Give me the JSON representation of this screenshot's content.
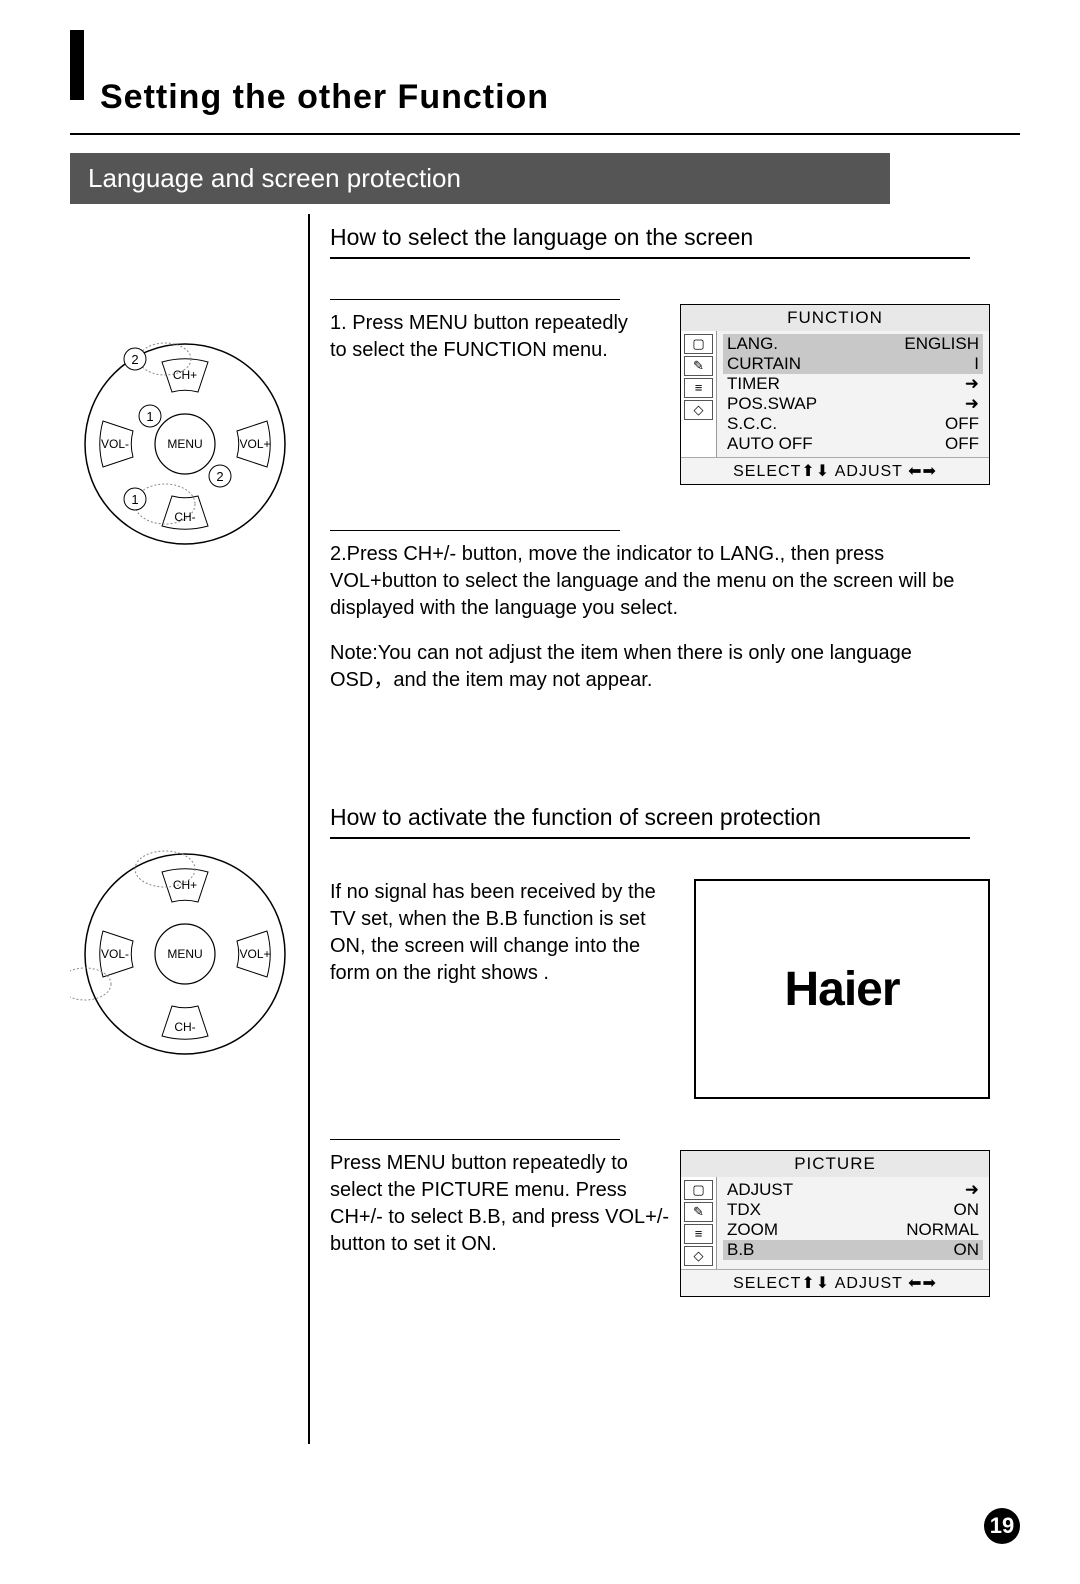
{
  "page_number": "19",
  "main_title": "Setting the other Function",
  "section_bar": "Language and screen protection",
  "heading1": "How to select the language on the screen",
  "step1": "1. Press MENU button repeatedly to select the FUNCTION  menu.",
  "step2": "2.Press CH+/- button, move the indicator to LANG., then press VOL+button to select the language and the menu on the screen will be displayed with the language you select.",
  "note1": "Note:You can not adjust the item when there is only one language OSD，and the item may not appear.",
  "heading2": "How to activate the function of screen protection",
  "para2": "If no signal has been received by the TV set, when the B.B function is set ON, the screen will change into  the form on the right shows .",
  "haier_logo": "Haier",
  "para3": "Press MENU button repeatedly to select the PICTURE menu. Press CH+/- to select B.B, and press VOL+/- button to set it ON.",
  "osd1": {
    "title": "FUNCTION",
    "rows": [
      {
        "label": "LANG.",
        "value": "ENGLISH",
        "hl": true
      },
      {
        "label": "CURTAIN",
        "value": "I",
        "hl": true
      },
      {
        "label": "TIMER",
        "value": "➜"
      },
      {
        "label": "POS.SWAP",
        "value": "➜"
      },
      {
        "label": "S.C.C.",
        "value": "OFF"
      },
      {
        "label": "AUTO OFF",
        "value": "OFF"
      }
    ],
    "footer": "SELECT⬆⬇ ADJUST ⬅➡"
  },
  "osd2": {
    "title": "PICTURE",
    "rows": [
      {
        "label": "ADJUST",
        "value": "➜"
      },
      {
        "label": "TDX",
        "value": "ON"
      },
      {
        "label": "ZOOM",
        "value": "NORMAL"
      },
      {
        "label": "B.B",
        "value": "ON",
        "hl": true
      }
    ],
    "footer": "SELECT⬆⬇ ADJUST ⬅➡"
  },
  "remote": {
    "ch_plus": "CH+",
    "ch_minus": "CH-",
    "vol_plus": "VOL+",
    "vol_minus": "VOL-",
    "menu": "MENU"
  }
}
